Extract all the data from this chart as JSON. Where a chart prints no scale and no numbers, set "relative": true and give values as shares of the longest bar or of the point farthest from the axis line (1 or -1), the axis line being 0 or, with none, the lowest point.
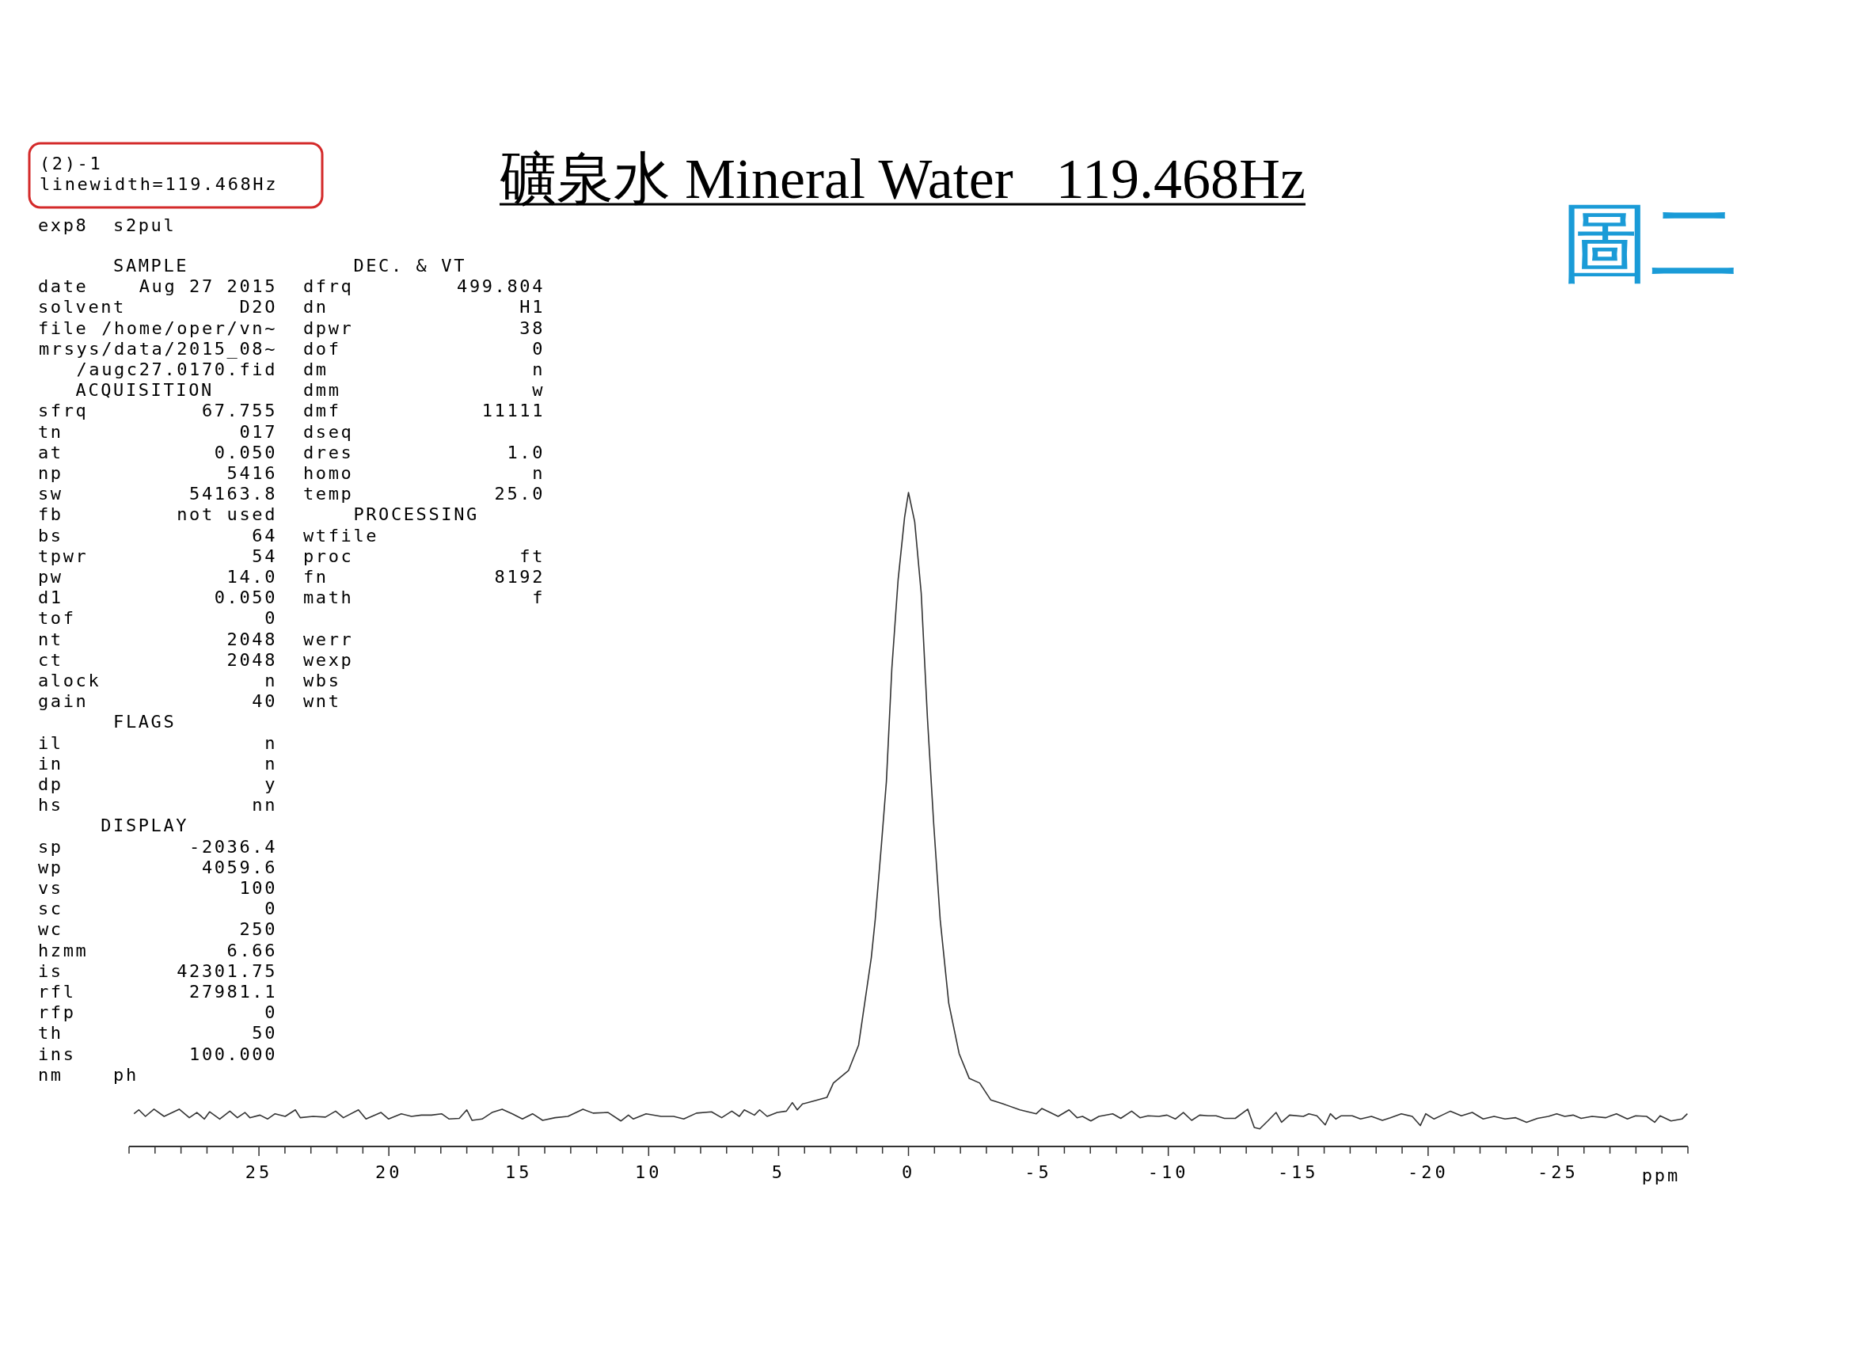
{
  "chart_data": {
    "type": "line",
    "relative": true,
    "title": "礦泉水 Mineral Water   119.468Hz",
    "xlabel": "ppm",
    "xlim": [
      30,
      -30
    ],
    "xticks": [
      {
        "value": 30,
        "label": null
      },
      {
        "value": 29,
        "label": null
      },
      {
        "value": 28,
        "label": null
      },
      {
        "value": 27,
        "label": null
      },
      {
        "value": 26,
        "label": null
      },
      25,
      {
        "value": 24,
        "label": null
      },
      {
        "value": 23,
        "label": null
      },
      {
        "value": 22,
        "label": null
      },
      {
        "value": 21,
        "label": null
      },
      20,
      {
        "value": 19,
        "label": null
      },
      {
        "value": 18,
        "label": null
      },
      {
        "value": 17,
        "label": null
      },
      {
        "value": 16,
        "label": null
      },
      15,
      {
        "value": 14,
        "label": null
      },
      {
        "value": 13,
        "label": null
      },
      {
        "value": 12,
        "label": null
      },
      {
        "value": 11,
        "label": null
      },
      10,
      {
        "value": 9,
        "label": null
      },
      {
        "value": 8,
        "label": null
      },
      {
        "value": 7,
        "label": null
      },
      {
        "value": 6,
        "label": null
      },
      5,
      {
        "value": 4,
        "label": null
      },
      {
        "value": 3,
        "label": null
      },
      {
        "value": 2,
        "label": null
      },
      {
        "value": 1,
        "label": null
      },
      0,
      {
        "value": -1,
        "label": null
      },
      {
        "value": -2,
        "label": null
      },
      {
        "value": -3,
        "label": null
      },
      {
        "value": -4,
        "label": null
      },
      -5,
      {
        "value": -6,
        "label": null
      },
      {
        "value": -7,
        "label": null
      },
      {
        "value": -8,
        "label": null
      },
      {
        "value": -9,
        "label": null
      },
      -10,
      {
        "value": -11,
        "label": null
      },
      {
        "value": -12,
        "label": null
      },
      {
        "value": -13,
        "label": null
      },
      {
        "value": -14,
        "label": null
      },
      -15,
      {
        "value": -16,
        "label": null
      },
      {
        "value": -17,
        "label": null
      },
      {
        "value": -18,
        "label": null
      },
      {
        "value": -19,
        "label": null
      },
      -20,
      {
        "value": -21,
        "label": null
      },
      {
        "value": -22,
        "label": null
      },
      {
        "value": -23,
        "label": null
      },
      {
        "value": -24,
        "label": null
      },
      -25,
      {
        "value": -26,
        "label": null
      },
      {
        "value": -27,
        "label": null
      },
      {
        "value": -28,
        "label": null
      },
      {
        "value": -29,
        "label": null
      },
      {
        "value": -30,
        "label": null
      }
    ],
    "annotations": [
      "(2)-1\nlinewidth=119.468Hz",
      "exp8  s2pul",
      "      SAMPLE\ndate\tAug 27 2015\nsolvent\tD2O\nfile\t/home/oper/vn~\n\tmrsys/data/2015_08~\n\t/augc27.0170.fid\n   ACQUISITION\nsfrq\t67.755\ntn\t017\nat\t0.050\nnp\t5416\nsw\t54163.8\nfb\tnot used\nbs\t64\ntpwr\t54\npw\t14.0\nd1\t0.050\ntof\t0\nnt\t2048\nct\t2048\nalock\tn\ngain\t40\n      FLAGS\nil\tn\nin\tn\ndp\ty\nhs\tnn\n     DISPLAY\nsp\t-2036.4\nwp\t4059.6\nvs\t100\nsc\t0\nwc\t250\nhzmm\t6.66\nis\t42301.75\nrfl\t27981.1\nrfp\t0\nth\t50\nins\t100.000\nnm    ph",
      "    DEC. & VT\ndfrq\t499.804\ndn\tH1\ndpwr\t38\ndof\t0\ndm\tn\ndmm\tw\ndmf\t11111\ndseq\ndres\t1.0\nhomo\tn\ntemp\t25.0\n    PROCESSING\nwtfile\nproc\tft\nfn\t8192\nmath\tf\n\nwerr\nwexp\nwbs\nwnt",
      "圖二"
    ],
    "series": [
      {
        "color": "#333333",
        "x": [
          29.81,
          29.62,
          29.37,
          29.04,
          28.65,
          28.07,
          27.68,
          27.39,
          27.1,
          26.9,
          26.51,
          26.12,
          25.83,
          25.54,
          25.35,
          24.96,
          24.67,
          24.38,
          23.99,
          23.6,
          23.41,
          22.92,
          22.44,
          22.05,
          21.75,
          21.17,
          20.88,
          20.3,
          20.01,
          19.52,
          19.13,
          18.75,
          18.36,
          17.97,
          17.68,
          17.29,
          17.0,
          16.8,
          16.41,
          16.03,
          15.64,
          15.25,
          14.86,
          14.47,
          14.08,
          13.6,
          13.11,
          12.53,
          12.14,
          11.56,
          11.07,
          10.78,
          10.59,
          10.1,
          9.52,
          9.04,
          8.65,
          8.16,
          7.58,
          7.19,
          6.8,
          6.51,
          6.32,
          5.93,
          5.73,
          5.44,
          5.05,
          4.7,
          4.47,
          4.28,
          4.08,
          3.78,
          3.14,
          2.89,
          2.31,
          1.92,
          1.43,
          1.28,
          1.04,
          0.85,
          0.64,
          0.4,
          0.15,
          0,
          -0.24,
          -0.49,
          -0.73,
          -0.97,
          -1.22,
          -1.55,
          -1.95,
          -2.34,
          -2.74,
          -3.17,
          -3.65,
          -4.29,
          -4.92,
          -5.13,
          -5.45,
          -5.76,
          -6.18,
          -6.49,
          -6.7,
          -7.02,
          -7.33,
          -7.86,
          -8.17,
          -8.59,
          -8.91,
          -9.22,
          -9.64,
          -9.95,
          -10.27,
          -10.58,
          -10.9,
          -11.21,
          -11.53,
          -11.84,
          -12.16,
          -12.58,
          -13.06,
          -13.31,
          -13.52,
          -13.83,
          -14.15,
          -14.36,
          -14.67,
          -15.2,
          -15.41,
          -15.72,
          -16.04,
          -16.24,
          -16.45,
          -16.66,
          -17.08,
          -17.4,
          -17.82,
          -18.24,
          -18.55,
          -18.97,
          -19.39,
          -19.7,
          -19.91,
          -20.23,
          -20.54,
          -20.86,
          -21.28,
          -21.7,
          -22.12,
          -22.54,
          -22.96,
          -23.37,
          -23.79,
          -24.21,
          -24.63,
          -24.95,
          -25.26,
          -25.58,
          -25.89,
          -26.31,
          -26.83,
          -27.25,
          -27.67,
          -27.99,
          -28.41,
          -28.72,
          -28.93,
          -29.35,
          -29.77,
          -29.98
        ],
        "values": [
          0.05,
          0.056,
          0.046,
          0.057,
          0.046,
          0.057,
          0.044,
          0.052,
          0.042,
          0.053,
          0.042,
          0.054,
          0.044,
          0.052,
          0.044,
          0.048,
          0.042,
          0.05,
          0.046,
          0.056,
          0.044,
          0.046,
          0.045,
          0.054,
          0.044,
          0.056,
          0.042,
          0.052,
          0.042,
          0.05,
          0.046,
          0.048,
          0.048,
          0.05,
          0.042,
          0.043,
          0.056,
          0.04,
          0.042,
          0.052,
          0.057,
          0.05,
          0.042,
          0.05,
          0.04,
          0.044,
          0.046,
          0.057,
          0.051,
          0.052,
          0.039,
          0.048,
          0.042,
          0.05,
          0.046,
          0.046,
          0.042,
          0.051,
          0.053,
          0.044,
          0.054,
          0.046,
          0.056,
          0.048,
          0.056,
          0.046,
          0.052,
          0.054,
          0.067,
          0.056,
          0.065,
          0.068,
          0.075,
          0.097,
          0.116,
          0.155,
          0.289,
          0.347,
          0.462,
          0.558,
          0.731,
          0.866,
          0.962,
          1,
          0.955,
          0.846,
          0.655,
          0.494,
          0.347,
          0.219,
          0.142,
          0.104,
          0.097,
          0.071,
          0.065,
          0.056,
          0.05,
          0.058,
          0.052,
          0.046,
          0.056,
          0.044,
          0.046,
          0.039,
          0.046,
          0.05,
          0.043,
          0.054,
          0.044,
          0.047,
          0.046,
          0.048,
          0.042,
          0.052,
          0.04,
          0.048,
          0.047,
          0.047,
          0.043,
          0.043,
          0.057,
          0.029,
          0.027,
          0.039,
          0.052,
          0.037,
          0.048,
          0.046,
          0.05,
          0.047,
          0.033,
          0.05,
          0.042,
          0.047,
          0.047,
          0.042,
          0.046,
          0.04,
          0.044,
          0.05,
          0.046,
          0.032,
          0.05,
          0.042,
          0.048,
          0.054,
          0.047,
          0.052,
          0.042,
          0.046,
          0.042,
          0.044,
          0.037,
          0.043,
          0.046,
          0.05,
          0.046,
          0.048,
          0.043,
          0.046,
          0.044,
          0.05,
          0.042,
          0.047,
          0.046,
          0.037,
          0.047,
          0.039,
          0.042,
          0.05
        ]
      }
    ]
  }
}
